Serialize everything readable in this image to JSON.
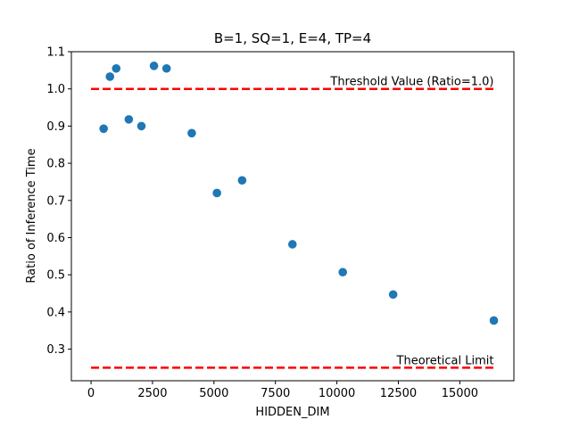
{
  "chart_data": {
    "type": "scatter",
    "title": "B=1, SQ=1, E=4, TP=4",
    "xlabel": "HIDDEN_DIM",
    "ylabel": "Ratio of Inference Time",
    "xlim": [
      -800,
      17200
    ],
    "ylim": [
      0.215,
      1.1
    ],
    "xticks": [
      0,
      2500,
      5000,
      7500,
      10000,
      12500,
      15000
    ],
    "xtick_labels": [
      "0",
      "2500",
      "5000",
      "7500",
      "10000",
      "12500",
      "15000"
    ],
    "yticks": [
      0.3,
      0.4,
      0.5,
      0.6,
      0.7,
      0.8,
      0.9,
      1.0,
      1.1
    ],
    "ytick_labels": [
      "0.3",
      "0.4",
      "0.5",
      "0.6",
      "0.7",
      "0.8",
      "0.9",
      "1.0",
      "1.1"
    ],
    "grid": false,
    "point_color": "#1f77b4",
    "points": [
      {
        "x": 512,
        "y": 0.893
      },
      {
        "x": 768,
        "y": 1.033
      },
      {
        "x": 1024,
        "y": 1.055
      },
      {
        "x": 1536,
        "y": 0.918
      },
      {
        "x": 2048,
        "y": 0.9
      },
      {
        "x": 2560,
        "y": 1.062
      },
      {
        "x": 3072,
        "y": 1.055
      },
      {
        "x": 4096,
        "y": 0.881
      },
      {
        "x": 5120,
        "y": 0.72
      },
      {
        "x": 6144,
        "y": 0.754
      },
      {
        "x": 8192,
        "y": 0.582
      },
      {
        "x": 10240,
        "y": 0.507
      },
      {
        "x": 12288,
        "y": 0.447
      },
      {
        "x": 16384,
        "y": 0.377
      }
    ],
    "reference_lines": [
      {
        "label": "Threshold Value (Ratio=1.0)",
        "y": 1.0,
        "x_range": [
          0,
          16384
        ],
        "color": "#ff0000",
        "style": "dashed"
      },
      {
        "label": "Theoretical Limit",
        "y": 0.25,
        "x_range": [
          0,
          16384
        ],
        "color": "#ff0000",
        "style": "dashed"
      }
    ]
  }
}
